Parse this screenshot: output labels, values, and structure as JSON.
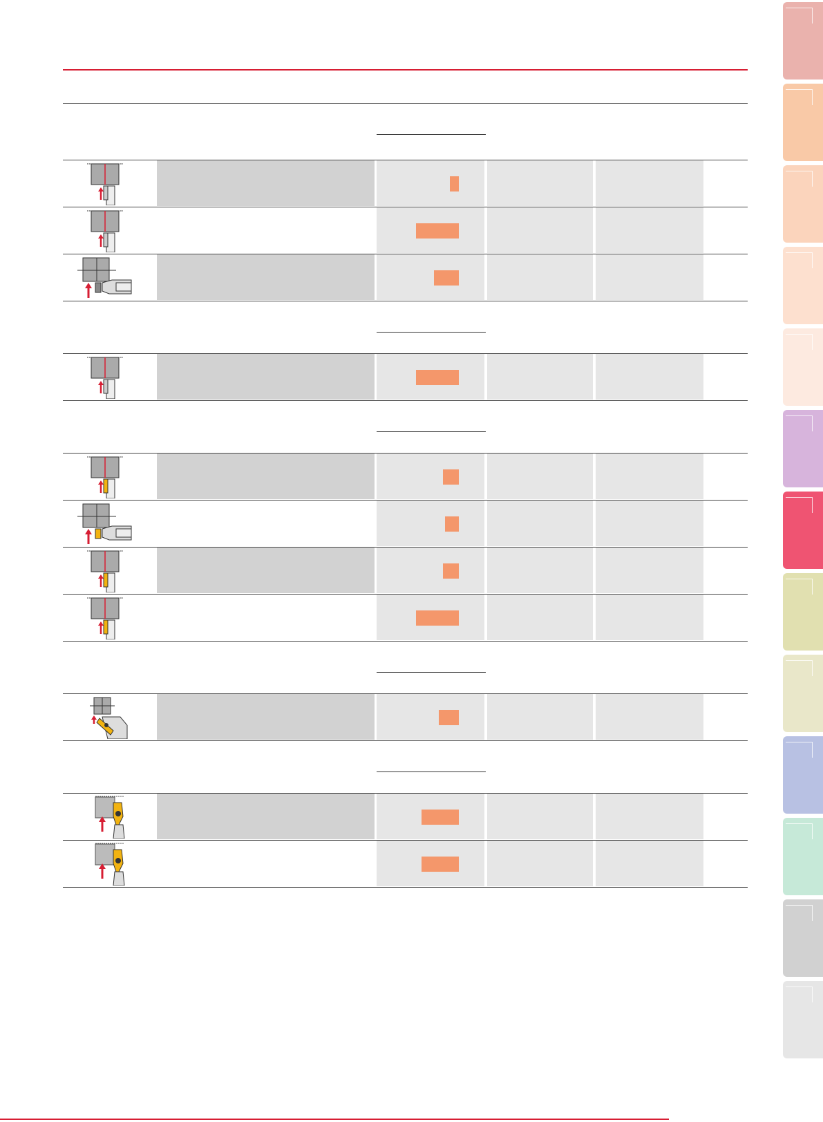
{
  "colors": {
    "accent_red": "#d71e33",
    "desc_grey": "#d2d2d2",
    "cell_grey": "#e6e6e6",
    "bar_orange": "#f4976b",
    "tool_yellow": "#f2b311"
  },
  "side_tabs": [
    {
      "color": "#eab2ad"
    },
    {
      "color": "#f9c9a7"
    },
    {
      "color": "#fbd4bc"
    },
    {
      "color": "#fde0cf"
    },
    {
      "color": "#fdeae0"
    },
    {
      "color": "#d7b4dc"
    },
    {
      "color": "#ef5472"
    },
    {
      "color": "#e1e0b0"
    },
    {
      "color": "#e9e7c9"
    },
    {
      "color": "#b8c1e3"
    },
    {
      "color": "#c6e9d8"
    },
    {
      "color": "#d1d1d1"
    },
    {
      "color": "#e6e6e6"
    }
  ],
  "sections": [
    {
      "rows": [
        {
          "icon": "face-grooving-tool-icon",
          "bar_fraction": 0.08
        },
        {
          "icon": "face-grooving-tool-icon",
          "bar_fraction": 0.38
        },
        {
          "icon": "internal-face-grooving-tool-icon",
          "bar_fraction": 0.22
        }
      ]
    },
    {
      "rows": [
        {
          "icon": "face-grooving-tool-icon",
          "bar_fraction": 0.38
        }
      ]
    },
    {
      "rows": [
        {
          "icon": "face-grooving-insert-icon",
          "bar_fraction": 0.14
        },
        {
          "icon": "internal-face-grooving-insert-icon",
          "bar_fraction": 0.12
        },
        {
          "icon": "face-grooving-insert-icon",
          "bar_fraction": 0.14
        },
        {
          "icon": "face-grooving-insert-icon",
          "bar_fraction": 0.38
        }
      ]
    },
    {
      "rows": [
        {
          "icon": "angled-face-grooving-tool-icon",
          "bar_fraction": 0.18
        }
      ]
    },
    {
      "rows": [
        {
          "icon": "round-insert-face-tool-icon",
          "bar_fraction": 0.33
        },
        {
          "icon": "round-insert-face-tool-icon",
          "bar_fraction": 0.33
        }
      ]
    }
  ]
}
